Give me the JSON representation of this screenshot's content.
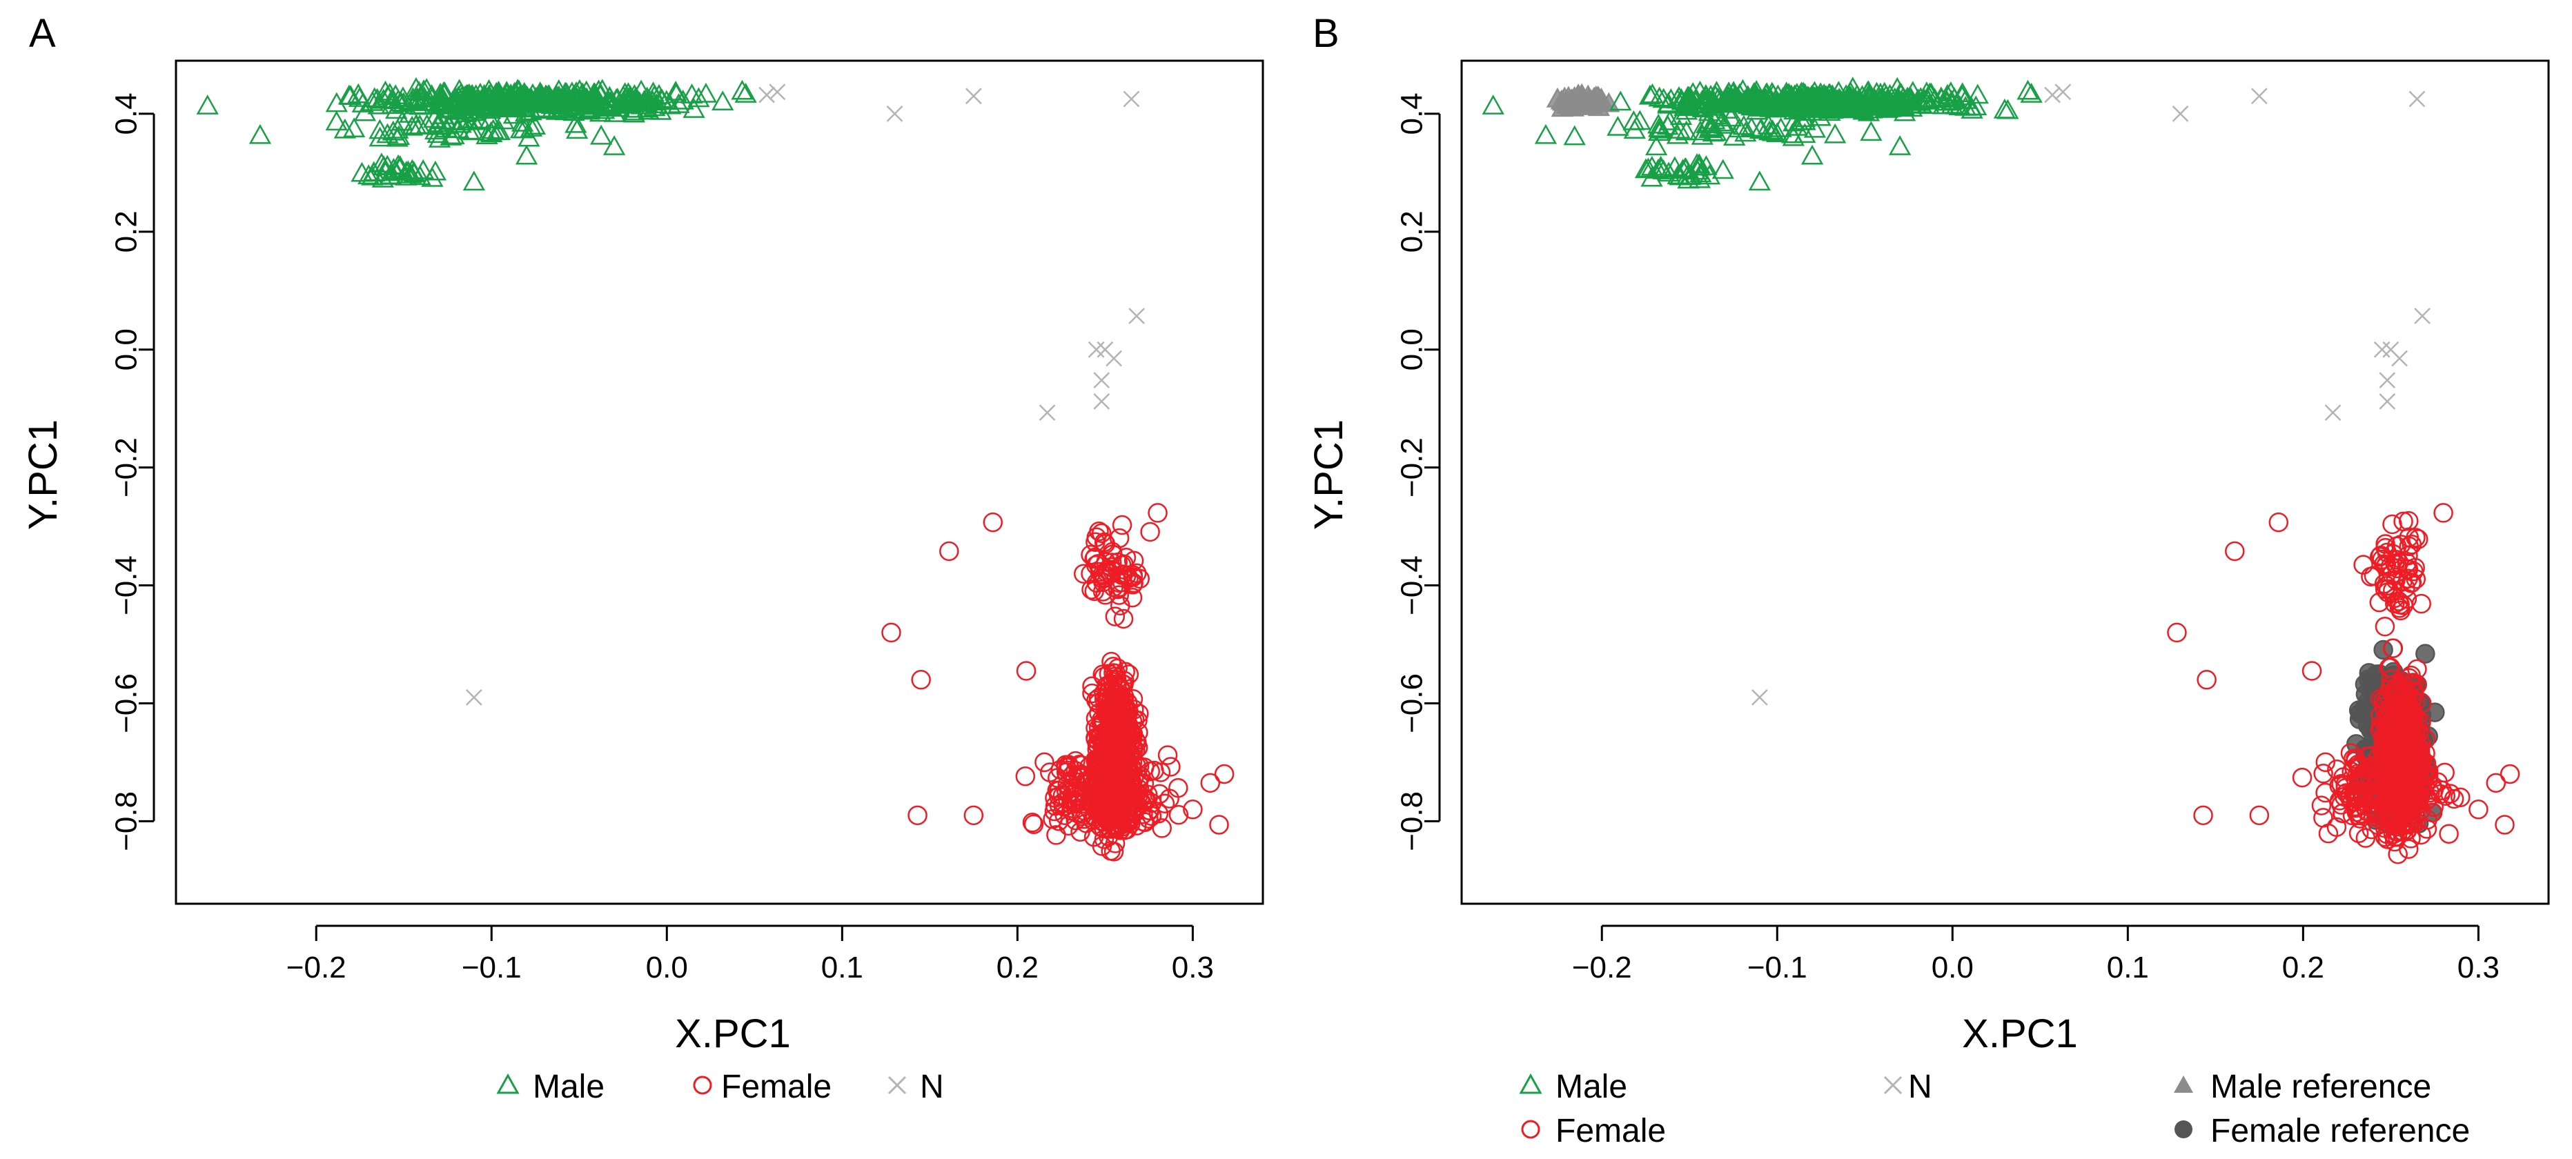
{
  "colors": {
    "male": "#17A046",
    "female": "#EE1C24",
    "n": "#B4B4B4",
    "male_reference": "#8C8C8C",
    "female_reference": "#555555",
    "axis": "#000000"
  },
  "chart_data": [
    {
      "type": "scatter",
      "panel_label": "A",
      "xlabel": "X.PC1",
      "ylabel": "Y.PC1",
      "xlim": [
        -0.28,
        0.34
      ],
      "ylim": [
        -0.94,
        0.49
      ],
      "xticks": [
        -0.2,
        -0.1,
        0.0,
        0.1,
        0.2,
        0.3
      ],
      "xtick_labels": [
        "−0.2",
        "−0.1",
        "0.0",
        "0.1",
        "0.2",
        "0.3"
      ],
      "yticks": [
        0.4,
        0.2,
        0.0,
        -0.2,
        -0.4,
        -0.6,
        -0.8
      ],
      "ytick_labels": [
        "0.4",
        "0.2",
        "0.0",
        "−0.2",
        "−0.4",
        "−0.6",
        "−0.8"
      ],
      "legend": {
        "placement": "bottom",
        "entries": [
          {
            "key": "male",
            "label": "Male",
            "marker": "triangle-open"
          },
          {
            "key": "female",
            "label": "Female",
            "marker": "circle-open"
          },
          {
            "key": "n",
            "label": "N",
            "marker": "x"
          }
        ]
      },
      "series": [
        {
          "name": "Male",
          "key": "male",
          "marker": "triangle-open",
          "clusters": [
            {
              "n": 430,
              "x_range": [
                -0.205,
                0.045
              ],
              "y_range": [
                0.395,
                0.445
              ]
            },
            {
              "n": 55,
              "x_range": [
                -0.235,
                -0.02
              ],
              "y_range": [
                0.34,
                0.41
              ]
            },
            {
              "n": 28,
              "x_range": [
                -0.185,
                -0.12
              ],
              "y_range": [
                0.28,
                0.32
              ]
            }
          ],
          "points": [
            [
              -0.262,
              0.412
            ],
            [
              -0.232,
              0.362
            ],
            [
              -0.11,
              0.283
            ],
            [
              -0.1,
              0.365
            ],
            [
              -0.08,
              0.327
            ],
            [
              -0.03,
              0.343
            ],
            [
              0.043,
              0.437
            ],
            [
              0.045,
              0.432
            ]
          ]
        },
        {
          "name": "Female",
          "key": "female",
          "marker": "circle-open",
          "clusters": [
            {
              "n": 600,
              "x_range": [
                0.24,
                0.272
              ],
              "y_range": [
                -0.88,
                -0.5
              ]
            },
            {
              "n": 200,
              "x_range": [
                0.195,
                0.3
              ],
              "y_range": [
                -0.85,
                -0.65
              ]
            },
            {
              "n": 60,
              "x_range": [
                0.23,
                0.28
              ],
              "y_range": [
                -0.5,
                -0.27
              ]
            }
          ],
          "points": [
            [
              0.128,
              -0.48
            ],
            [
              0.145,
              -0.56
            ],
            [
              0.143,
              -0.79
            ],
            [
              0.161,
              -0.342
            ],
            [
              0.186,
              -0.293
            ],
            [
              0.28,
              -0.277
            ],
            [
              0.318,
              -0.72
            ],
            [
              0.315,
              -0.806
            ],
            [
              0.31,
              -0.735
            ],
            [
              0.3,
              -0.78
            ],
            [
              0.175,
              -0.79
            ],
            [
              0.205,
              -0.545
            ]
          ]
        },
        {
          "name": "N",
          "key": "n",
          "marker": "x",
          "points": [
            [
              0.057,
              0.432
            ],
            [
              0.063,
              0.437
            ],
            [
              0.13,
              0.4
            ],
            [
              0.175,
              0.43
            ],
            [
              0.265,
              0.425
            ],
            [
              0.268,
              0.057
            ],
            [
              0.245,
              0.0
            ],
            [
              0.25,
              0.0
            ],
            [
              0.255,
              -0.015
            ],
            [
              0.248,
              -0.052
            ],
            [
              0.248,
              -0.088
            ],
            [
              0.217,
              -0.107
            ],
            [
              -0.11,
              -0.59
            ]
          ]
        }
      ]
    },
    {
      "type": "scatter",
      "panel_label": "B",
      "xlabel": "X.PC1",
      "ylabel": "Y.PC1",
      "xlim": [
        -0.28,
        0.34
      ],
      "ylim": [
        -0.94,
        0.49
      ],
      "xticks": [
        -0.2,
        -0.1,
        0.0,
        0.1,
        0.2,
        0.3
      ],
      "xtick_labels": [
        "−0.2",
        "−0.1",
        "0.0",
        "0.1",
        "0.2",
        "0.3"
      ],
      "yticks": [
        0.4,
        0.2,
        0.0,
        -0.2,
        -0.4,
        -0.6,
        -0.8
      ],
      "ytick_labels": [
        "0.4",
        "0.2",
        "0.0",
        "−0.2",
        "−0.4",
        "−0.6",
        "−0.8"
      ],
      "legend": {
        "placement": "bottom",
        "entries": [
          {
            "key": "male",
            "label": "Male",
            "marker": "triangle-open"
          },
          {
            "key": "female",
            "label": "Female",
            "marker": "circle-open"
          },
          {
            "key": "n",
            "label": "N",
            "marker": "x"
          },
          {
            "key": "male_reference",
            "label": "Male reference",
            "marker": "triangle-filled"
          },
          {
            "key": "female_reference",
            "label": "Female reference",
            "marker": "circle-filled"
          }
        ]
      },
      "series": [
        {
          "name": "Male reference",
          "key": "male_reference",
          "marker": "triangle-filled",
          "clusters": [
            {
              "n": 60,
              "x_range": [
                -0.23,
                -0.19
              ],
              "y_range": [
                0.405,
                0.435
              ]
            }
          ]
        },
        {
          "name": "Female reference",
          "key": "female_reference",
          "marker": "circle-filled",
          "clusters": [
            {
              "n": 300,
              "x_range": [
                0.225,
                0.28
              ],
              "y_range": [
                -0.86,
                -0.48
              ]
            }
          ]
        },
        {
          "name": "Male",
          "key": "male",
          "marker": "triangle-open",
          "clusters": [
            {
              "n": 430,
              "x_range": [
                -0.205,
                0.045
              ],
              "y_range": [
                0.395,
                0.445
              ]
            },
            {
              "n": 55,
              "x_range": [
                -0.235,
                -0.02
              ],
              "y_range": [
                0.34,
                0.41
              ]
            },
            {
              "n": 28,
              "x_range": [
                -0.185,
                -0.12
              ],
              "y_range": [
                0.28,
                0.32
              ]
            }
          ],
          "points": [
            [
              -0.262,
              0.412
            ],
            [
              -0.232,
              0.362
            ],
            [
              -0.11,
              0.283
            ],
            [
              -0.1,
              0.365
            ],
            [
              -0.08,
              0.327
            ],
            [
              -0.03,
              0.343
            ],
            [
              0.043,
              0.437
            ],
            [
              0.045,
              0.432
            ]
          ]
        },
        {
          "name": "Female",
          "key": "female",
          "marker": "circle-open",
          "clusters": [
            {
              "n": 600,
              "x_range": [
                0.24,
                0.272
              ],
              "y_range": [
                -0.88,
                -0.5
              ]
            },
            {
              "n": 200,
              "x_range": [
                0.195,
                0.3
              ],
              "y_range": [
                -0.85,
                -0.65
              ]
            },
            {
              "n": 60,
              "x_range": [
                0.23,
                0.28
              ],
              "y_range": [
                -0.5,
                -0.27
              ]
            }
          ],
          "points": [
            [
              0.128,
              -0.48
            ],
            [
              0.145,
              -0.56
            ],
            [
              0.143,
              -0.79
            ],
            [
              0.161,
              -0.342
            ],
            [
              0.186,
              -0.293
            ],
            [
              0.28,
              -0.277
            ],
            [
              0.318,
              -0.72
            ],
            [
              0.315,
              -0.806
            ],
            [
              0.31,
              -0.735
            ],
            [
              0.3,
              -0.78
            ],
            [
              0.175,
              -0.79
            ],
            [
              0.205,
              -0.545
            ]
          ]
        },
        {
          "name": "N",
          "key": "n",
          "marker": "x",
          "points": [
            [
              0.057,
              0.432
            ],
            [
              0.063,
              0.437
            ],
            [
              0.13,
              0.4
            ],
            [
              0.175,
              0.43
            ],
            [
              0.265,
              0.425
            ],
            [
              0.268,
              0.057
            ],
            [
              0.245,
              0.0
            ],
            [
              0.25,
              0.0
            ],
            [
              0.255,
              -0.015
            ],
            [
              0.248,
              -0.052
            ],
            [
              0.248,
              -0.088
            ],
            [
              0.217,
              -0.107
            ],
            [
              -0.11,
              -0.59
            ]
          ]
        }
      ]
    }
  ]
}
